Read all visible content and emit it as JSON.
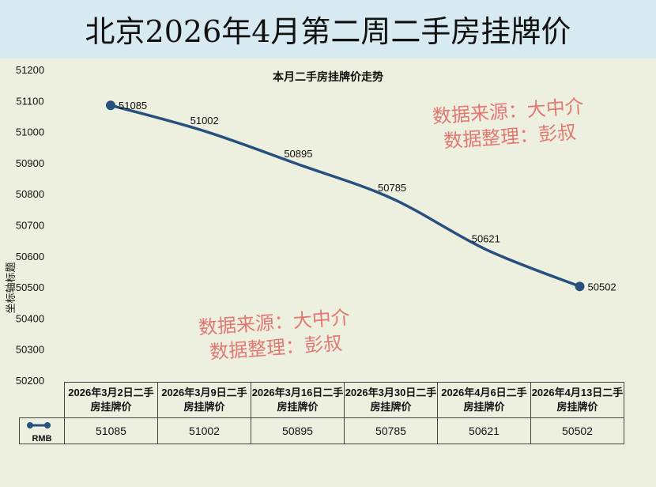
{
  "title": "北京2026年4月第二周二手房挂牌价",
  "watermarks": [
    {
      "line1": "数据来源：大中介",
      "line2": "数据整理：彭叔"
    },
    {
      "line1": "数据来源：大中介",
      "line2": "数据整理：彭叔"
    }
  ],
  "chart_data": {
    "type": "line",
    "title": "本月二手房挂牌价走势",
    "ylabel": "坐标轴标题",
    "xlabel": "",
    "ylim": [
      50200,
      51200
    ],
    "yticks": [
      50200,
      50300,
      50400,
      50500,
      50600,
      50700,
      50800,
      50900,
      51000,
      51100,
      51200
    ],
    "categories": [
      "2026年3月2日二手房挂牌价",
      "2026年3月9日二手房挂牌价",
      "2026年3月16日二手房挂牌价",
      "2026年3月30日二手房挂牌价",
      "2026年4月6日二手房挂牌价",
      "2026年4月13日二手房挂牌价"
    ],
    "series": [
      {
        "name": "RMB",
        "values": [
          51085,
          51002,
          50895,
          50785,
          50621,
          50502
        ],
        "color": "#27507f"
      }
    ],
    "legend": "data-table"
  }
}
